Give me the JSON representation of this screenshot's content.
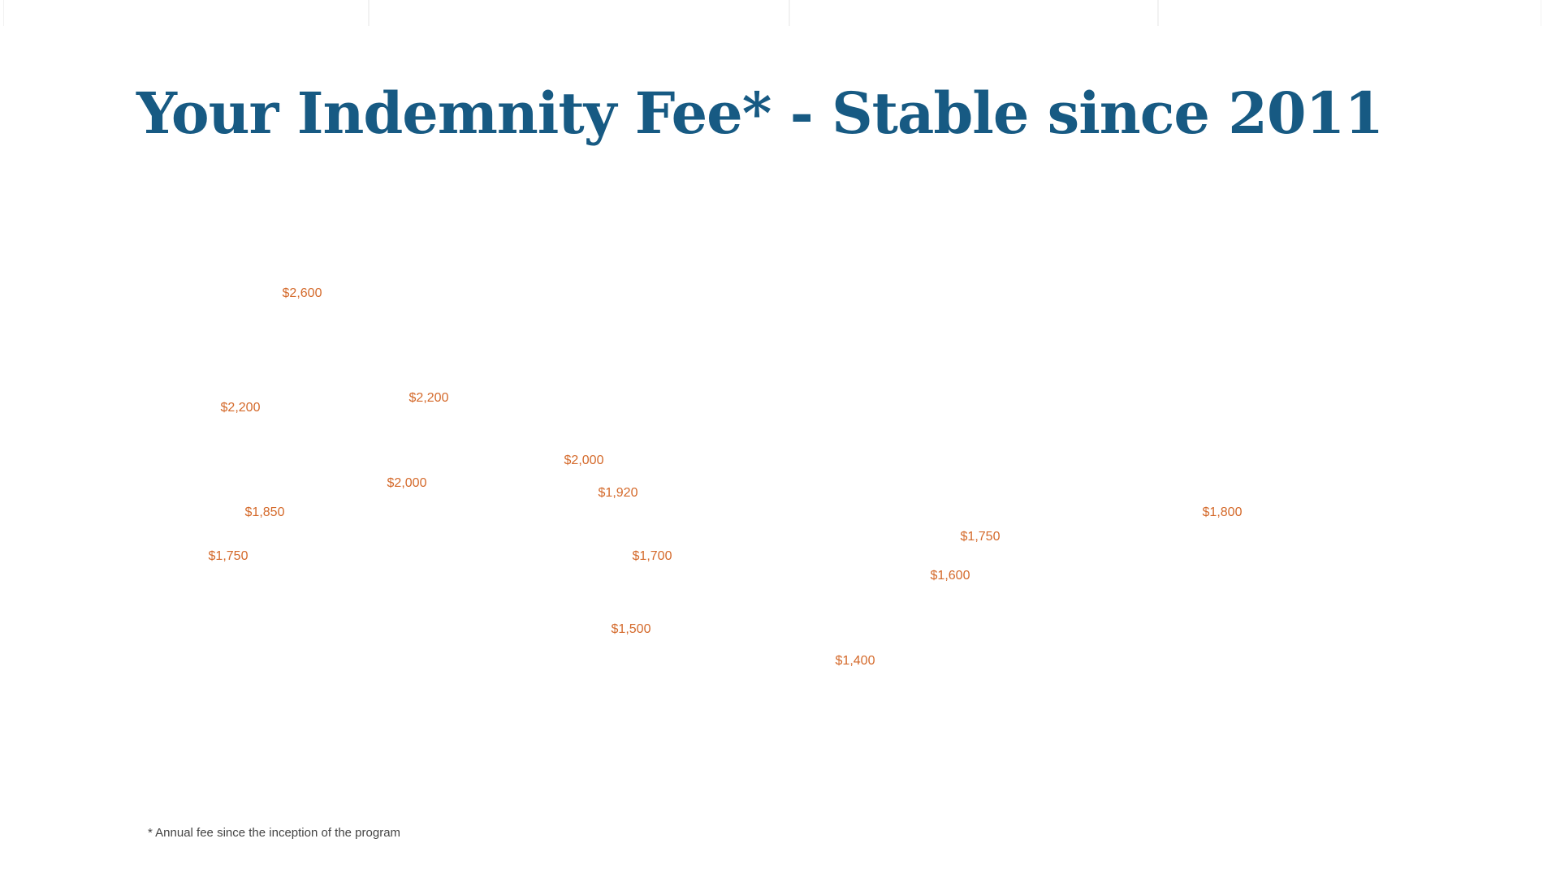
{
  "title": "Your Indemnity Fee* - Stable since 2011",
  "footnote": "* Annual fee since the inception of the program",
  "colors": {
    "title": "#175a83",
    "value_label": "#d4692a",
    "footnote": "#444444"
  },
  "chart_data": {
    "type": "scatter",
    "title": "",
    "xlabel": "",
    "ylabel": "",
    "grid": false,
    "legend": "none",
    "data_labels": [
      "$2,600",
      "$2,200",
      "$2,200",
      "$2,000",
      "$2,000",
      "$1,920",
      "$1,850",
      "$1,800",
      "$1,750",
      "$1,750",
      "$1,700",
      "$1,600",
      "$1,500",
      "$1,400"
    ],
    "values": [
      2600,
      2200,
      2200,
      2000,
      2000,
      1920,
      1850,
      1800,
      1750,
      1750,
      1700,
      1600,
      1500,
      1400
    ]
  }
}
